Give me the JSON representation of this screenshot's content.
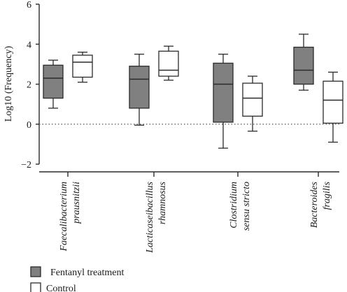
{
  "chart_data": {
    "type": "box",
    "title": "",
    "xlabel": "",
    "ylabel": "Log10 (Frequency)",
    "ylim": [
      -2,
      6
    ],
    "yticks": [
      "−2",
      "0",
      "2",
      "4",
      "6"
    ],
    "ytick_values": [
      -2,
      0,
      2,
      4,
      6
    ],
    "reference_line": {
      "y": 0,
      "style": "dotted"
    },
    "grid": false,
    "legend_position": "bottom-left",
    "categories": [
      {
        "line1": "Faecalibacterium",
        "line2": "prausnitzii"
      },
      {
        "line1": "Lacticaseibacillus",
        "line2": "rhamnosus"
      },
      {
        "line1": "Clostridium",
        "line2": "sensu stricto"
      },
      {
        "line1": "Bacteroides",
        "line2": "fragilis"
      }
    ],
    "series": [
      {
        "name": "Fentanyl treatment",
        "color": "#808080",
        "boxes": [
          {
            "min": 0.8,
            "q1": 1.3,
            "median": 2.3,
            "q3": 2.95,
            "max": 3.2
          },
          {
            "min": -0.05,
            "q1": 0.8,
            "median": 2.25,
            "q3": 2.9,
            "max": 3.5
          },
          {
            "min": -1.2,
            "q1": 0.1,
            "median": 2.0,
            "q3": 3.05,
            "max": 3.5
          },
          {
            "min": 1.7,
            "q1": 2.0,
            "median": 2.7,
            "q3": 3.85,
            "max": 4.5
          }
        ]
      },
      {
        "name": "Control",
        "color": "#ffffff",
        "boxes": [
          {
            "min": 2.1,
            "q1": 2.35,
            "median": 3.1,
            "q3": 3.45,
            "max": 3.6
          },
          {
            "min": 2.2,
            "q1": 2.4,
            "median": 2.7,
            "q3": 3.65,
            "max": 3.9
          },
          {
            "min": -0.35,
            "q1": 0.4,
            "median": 1.3,
            "q3": 2.05,
            "max": 2.4
          },
          {
            "min": -0.9,
            "q1": 0.05,
            "median": 1.2,
            "q3": 2.15,
            "max": 2.6
          }
        ]
      }
    ]
  }
}
